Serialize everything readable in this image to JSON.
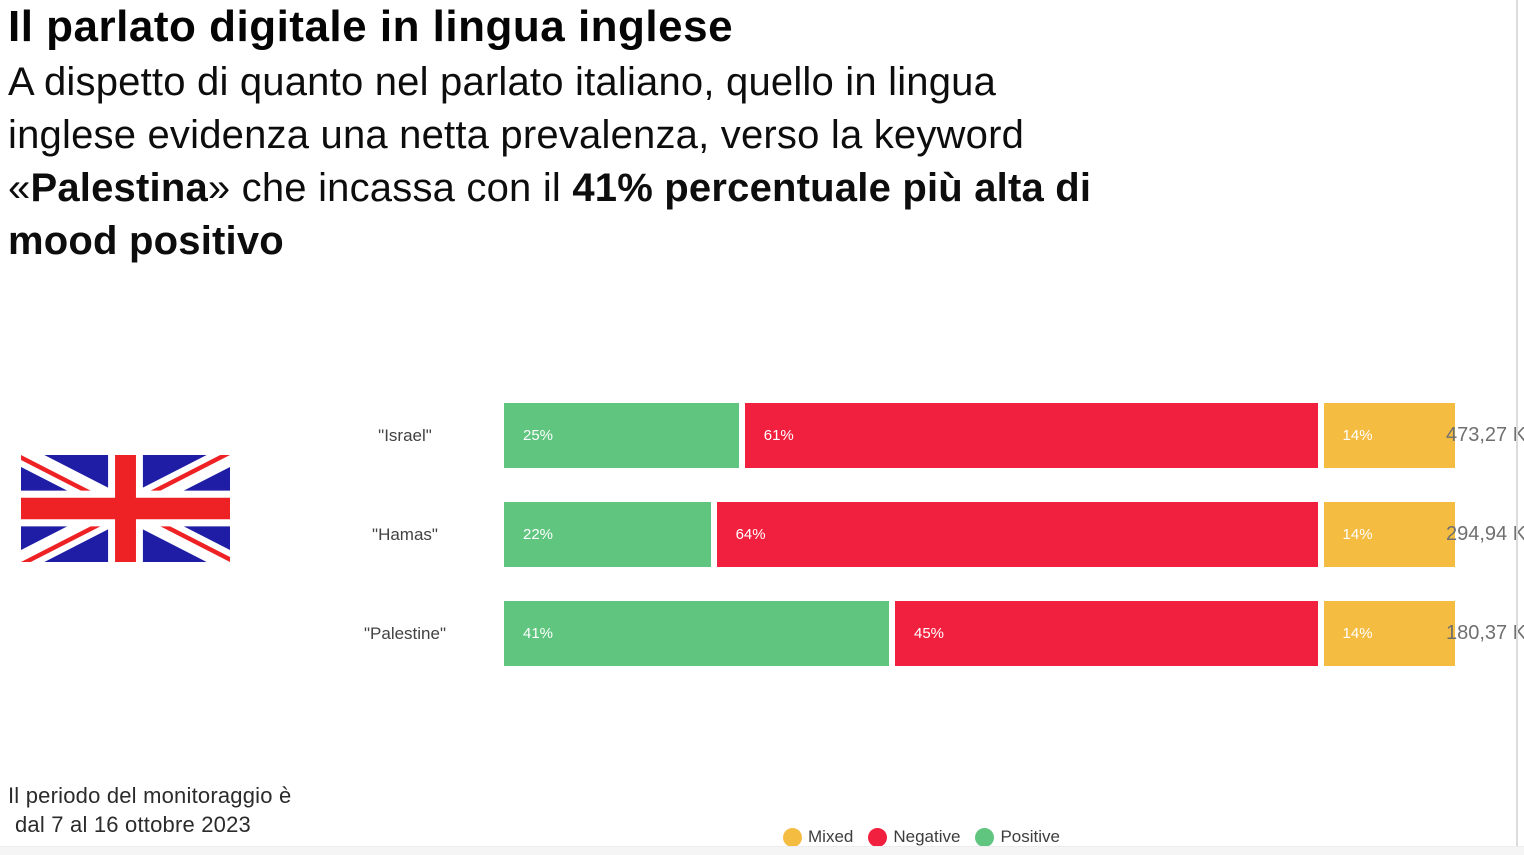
{
  "header": {
    "title": "Il parlato digitale in lingua inglese",
    "subtitle_lines": [
      [
        {
          "t": "A dispetto di quanto nel parlato italiano, quello in lingua",
          "b": false
        }
      ],
      [
        {
          "t": "inglese evidenza una netta prevalenza, verso la keyword",
          "b": false
        }
      ],
      [
        {
          "t": "«",
          "b": false
        },
        {
          "t": "Palestina",
          "b": true
        },
        {
          "t": "» che incassa con il ",
          "b": false
        },
        {
          "t": "41% percentuale più alta di",
          "b": true
        }
      ],
      [
        {
          "t": "mood positivo",
          "b": true
        }
      ]
    ]
  },
  "flag": {
    "name": "uk-flag",
    "blue": "#1f1da5",
    "red": "#ee2224",
    "white": "#ffffff"
  },
  "chart_data": {
    "type": "bar",
    "orientation": "horizontal",
    "stacked": true,
    "unit": "%",
    "series_meta": [
      {
        "name": "Positive",
        "color_key": "positive"
      },
      {
        "name": "Negative",
        "color_key": "negative"
      },
      {
        "name": "Mixed",
        "color_key": "mixed"
      }
    ],
    "colors": {
      "positive": "#5fc57f",
      "negative": "#f2203f",
      "mixed": "#f5bc42"
    },
    "rows": [
      {
        "category": "\"Israel\"",
        "values": [
          25,
          61,
          14
        ],
        "total": "473,27 K"
      },
      {
        "category": "\"Hamas\"",
        "values": [
          22,
          64,
          14
        ],
        "total": "294,94 K"
      },
      {
        "category": "\"Palestine\"",
        "values": [
          41,
          45,
          14
        ],
        "total": "180,37 K"
      }
    ],
    "legend": [
      {
        "label": "Mixed",
        "color_key": "mixed"
      },
      {
        "label": "Negative",
        "color_key": "negative"
      },
      {
        "label": "Positive",
        "color_key": "positive"
      }
    ]
  },
  "footer": {
    "line1": "Il periodo del monitoraggio è",
    "line2": "dal 7 al 16 ottobre 2023"
  }
}
